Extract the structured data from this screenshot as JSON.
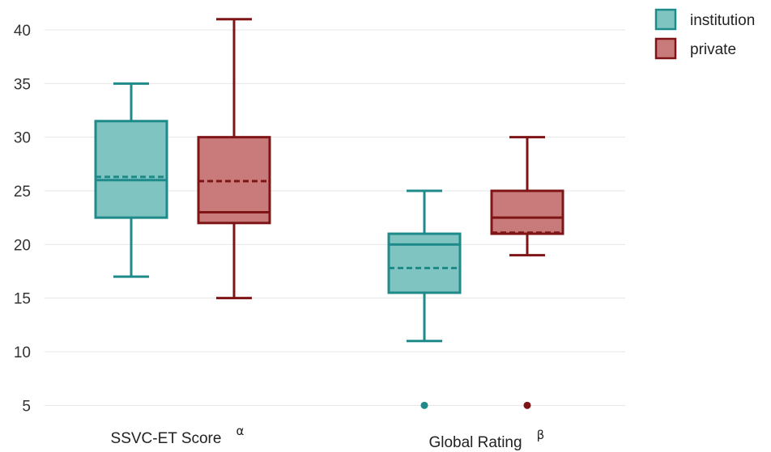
{
  "chart_data": {
    "type": "box",
    "title": "",
    "xlabel": "",
    "ylabel": "",
    "ylim": [
      4,
      42
    ],
    "yticks": [
      5,
      10,
      15,
      20,
      25,
      30,
      35,
      40
    ],
    "grid": true,
    "legend_position": "top-right",
    "categories": [
      {
        "label": "SSVC-ET Score",
        "superscript": "α"
      },
      {
        "label": "Global Rating",
        "superscript": "β"
      }
    ],
    "series": [
      {
        "name": "institution",
        "stroke": "#1f8a8a",
        "fill": "#7fc4c0",
        "boxes": [
          {
            "whisker_low": 17,
            "q1": 22.5,
            "median": 26,
            "mean": 26.3,
            "q3": 31.5,
            "whisker_high": 35,
            "outliers": []
          },
          {
            "whisker_low": 11,
            "q1": 15.5,
            "median": 20,
            "mean": 17.8,
            "q3": 21,
            "whisker_high": 25,
            "outliers": [
              5
            ]
          }
        ]
      },
      {
        "name": "private",
        "stroke": "#7f1416",
        "fill": "#c97b7b",
        "boxes": [
          {
            "whisker_low": 15,
            "q1": 22,
            "median": 23,
            "mean": 25.9,
            "q3": 30,
            "whisker_high": 41,
            "outliers": []
          },
          {
            "whisker_low": 19,
            "q1": 21,
            "median": 22.5,
            "mean": 21.1,
            "q3": 25,
            "whisker_high": 30,
            "outliers": [
              5
            ]
          }
        ]
      }
    ]
  }
}
